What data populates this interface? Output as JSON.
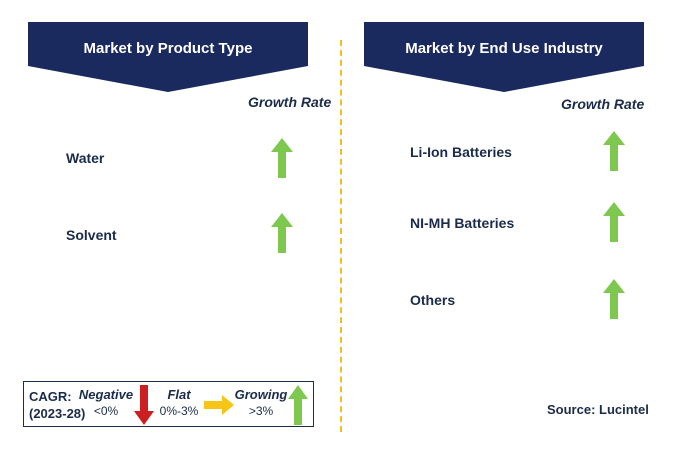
{
  "left_panel": {
    "title": "Market by Product Type",
    "growth_rate_header": "Growth Rate",
    "items": [
      {
        "label": "Water",
        "trend": "growing"
      },
      {
        "label": "Solvent",
        "trend": "growing"
      }
    ]
  },
  "right_panel": {
    "title": "Market by End Use Industry",
    "growth_rate_header": "Growth Rate",
    "items": [
      {
        "label": "Li-Ion Batteries",
        "trend": "growing"
      },
      {
        "label": "NI-MH Batteries",
        "trend": "growing"
      },
      {
        "label": "Others",
        "trend": "growing"
      }
    ]
  },
  "legend": {
    "cagr_label": "CAGR:",
    "period": "(2023-28)",
    "negative_title": "Negative",
    "negative_range": "<0%",
    "flat_title": "Flat",
    "flat_range": "0%-3%",
    "growing_title": "Growing",
    "growing_range": ">3%"
  },
  "source": "Source: Lucintel",
  "colors": {
    "banner": "#1b2a5e",
    "growing_arrow": "#7ec850",
    "negative_arrow": "#cc1f1f",
    "flat_arrow": "#f5c518",
    "divider": "#f0c020"
  },
  "icons": {
    "growing": "up-arrow-icon",
    "negative": "down-arrow-icon",
    "flat": "right-arrow-icon"
  }
}
